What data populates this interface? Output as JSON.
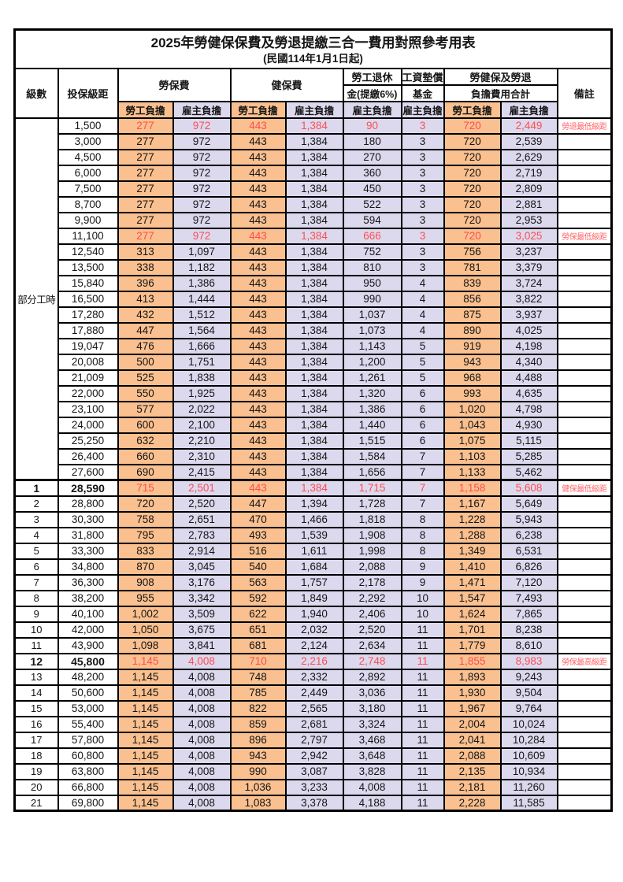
{
  "title": "2025年勞健保保費及勞退提繳三合一費用對照參考用表",
  "subtitle": "(民國114年1月1日起)",
  "header": {
    "level": "級數",
    "bracket": "投保級距",
    "labor": "勞保費",
    "health": "健保費",
    "pension_line1": "勞工退休",
    "pension_line2": "金(提繳6%)",
    "fund_line1": "工資墊償",
    "fund_line2": "基金",
    "total_line1": "勞健保及勞退",
    "total_line2": "負擔費用合計",
    "employee": "勞工負擔",
    "employer": "雇主負擔",
    "note": "備註"
  },
  "part_time_label": "部分工時",
  "colors": {
    "employee_bg": "#FAC08F",
    "employer_bg": "#DCD9EE",
    "highlight_red": "#FF4D50",
    "note_red": "#FF6468"
  },
  "rows": [
    {
      "level": "",
      "bracket": "1,500",
      "labor_emp": "277",
      "labor_er": "972",
      "health_emp": "443",
      "health_er": "1,384",
      "pension_er": "90",
      "fund_er": "3",
      "total_emp": "720",
      "total_er": "2,449",
      "note": "勞退最低級距",
      "red": true,
      "bold": false
    },
    {
      "level": "",
      "bracket": "3,000",
      "labor_emp": "277",
      "labor_er": "972",
      "health_emp": "443",
      "health_er": "1,384",
      "pension_er": "180",
      "fund_er": "3",
      "total_emp": "720",
      "total_er": "2,539",
      "note": "",
      "red": false,
      "bold": false
    },
    {
      "level": "",
      "bracket": "4,500",
      "labor_emp": "277",
      "labor_er": "972",
      "health_emp": "443",
      "health_er": "1,384",
      "pension_er": "270",
      "fund_er": "3",
      "total_emp": "720",
      "total_er": "2,629",
      "note": "",
      "red": false,
      "bold": false
    },
    {
      "level": "",
      "bracket": "6,000",
      "labor_emp": "277",
      "labor_er": "972",
      "health_emp": "443",
      "health_er": "1,384",
      "pension_er": "360",
      "fund_er": "3",
      "total_emp": "720",
      "total_er": "2,719",
      "note": "",
      "red": false,
      "bold": false
    },
    {
      "level": "",
      "bracket": "7,500",
      "labor_emp": "277",
      "labor_er": "972",
      "health_emp": "443",
      "health_er": "1,384",
      "pension_er": "450",
      "fund_er": "3",
      "total_emp": "720",
      "total_er": "2,809",
      "note": "",
      "red": false,
      "bold": false
    },
    {
      "level": "",
      "bracket": "8,700",
      "labor_emp": "277",
      "labor_er": "972",
      "health_emp": "443",
      "health_er": "1,384",
      "pension_er": "522",
      "fund_er": "3",
      "total_emp": "720",
      "total_er": "2,881",
      "note": "",
      "red": false,
      "bold": false
    },
    {
      "level": "",
      "bracket": "9,900",
      "labor_emp": "277",
      "labor_er": "972",
      "health_emp": "443",
      "health_er": "1,384",
      "pension_er": "594",
      "fund_er": "3",
      "total_emp": "720",
      "total_er": "2,953",
      "note": "",
      "red": false,
      "bold": false
    },
    {
      "level": "",
      "bracket": "11,100",
      "labor_emp": "277",
      "labor_er": "972",
      "health_emp": "443",
      "health_er": "1,384",
      "pension_er": "666",
      "fund_er": "3",
      "total_emp": "720",
      "total_er": "3,025",
      "note": "勞保最低級距",
      "red": true,
      "bold": false
    },
    {
      "level": "",
      "bracket": "12,540",
      "labor_emp": "313",
      "labor_er": "1,097",
      "health_emp": "443",
      "health_er": "1,384",
      "pension_er": "752",
      "fund_er": "3",
      "total_emp": "756",
      "total_er": "3,237",
      "note": "",
      "red": false,
      "bold": false
    },
    {
      "level": "",
      "bracket": "13,500",
      "labor_emp": "338",
      "labor_er": "1,182",
      "health_emp": "443",
      "health_er": "1,384",
      "pension_er": "810",
      "fund_er": "3",
      "total_emp": "781",
      "total_er": "3,379",
      "note": "",
      "red": false,
      "bold": false
    },
    {
      "level": "",
      "bracket": "15,840",
      "labor_emp": "396",
      "labor_er": "1,386",
      "health_emp": "443",
      "health_er": "1,384",
      "pension_er": "950",
      "fund_er": "4",
      "total_emp": "839",
      "total_er": "3,724",
      "note": "",
      "red": false,
      "bold": false
    },
    {
      "level": "",
      "bracket": "16,500",
      "labor_emp": "413",
      "labor_er": "1,444",
      "health_emp": "443",
      "health_er": "1,384",
      "pension_er": "990",
      "fund_er": "4",
      "total_emp": "856",
      "total_er": "3,822",
      "note": "",
      "red": false,
      "bold": false
    },
    {
      "level": "",
      "bracket": "17,280",
      "labor_emp": "432",
      "labor_er": "1,512",
      "health_emp": "443",
      "health_er": "1,384",
      "pension_er": "1,037",
      "fund_er": "4",
      "total_emp": "875",
      "total_er": "3,937",
      "note": "",
      "red": false,
      "bold": false
    },
    {
      "level": "",
      "bracket": "17,880",
      "labor_emp": "447",
      "labor_er": "1,564",
      "health_emp": "443",
      "health_er": "1,384",
      "pension_er": "1,073",
      "fund_er": "4",
      "total_emp": "890",
      "total_er": "4,025",
      "note": "",
      "red": false,
      "bold": false
    },
    {
      "level": "",
      "bracket": "19,047",
      "labor_emp": "476",
      "labor_er": "1,666",
      "health_emp": "443",
      "health_er": "1,384",
      "pension_er": "1,143",
      "fund_er": "5",
      "total_emp": "919",
      "total_er": "4,198",
      "note": "",
      "red": false,
      "bold": false
    },
    {
      "level": "",
      "bracket": "20,008",
      "labor_emp": "500",
      "labor_er": "1,751",
      "health_emp": "443",
      "health_er": "1,384",
      "pension_er": "1,200",
      "fund_er": "5",
      "total_emp": "943",
      "total_er": "4,340",
      "note": "",
      "red": false,
      "bold": false
    },
    {
      "level": "",
      "bracket": "21,009",
      "labor_emp": "525",
      "labor_er": "1,838",
      "health_emp": "443",
      "health_er": "1,384",
      "pension_er": "1,261",
      "fund_er": "5",
      "total_emp": "968",
      "total_er": "4,488",
      "note": "",
      "red": false,
      "bold": false
    },
    {
      "level": "",
      "bracket": "22,000",
      "labor_emp": "550",
      "labor_er": "1,925",
      "health_emp": "443",
      "health_er": "1,384",
      "pension_er": "1,320",
      "fund_er": "6",
      "total_emp": "993",
      "total_er": "4,635",
      "note": "",
      "red": false,
      "bold": false
    },
    {
      "level": "",
      "bracket": "23,100",
      "labor_emp": "577",
      "labor_er": "2,022",
      "health_emp": "443",
      "health_er": "1,384",
      "pension_er": "1,386",
      "fund_er": "6",
      "total_emp": "1,020",
      "total_er": "4,798",
      "note": "",
      "red": false,
      "bold": false
    },
    {
      "level": "",
      "bracket": "24,000",
      "labor_emp": "600",
      "labor_er": "2,100",
      "health_emp": "443",
      "health_er": "1,384",
      "pension_er": "1,440",
      "fund_er": "6",
      "total_emp": "1,043",
      "total_er": "4,930",
      "note": "",
      "red": false,
      "bold": false
    },
    {
      "level": "",
      "bracket": "25,250",
      "labor_emp": "632",
      "labor_er": "2,210",
      "health_emp": "443",
      "health_er": "1,384",
      "pension_er": "1,515",
      "fund_er": "6",
      "total_emp": "1,075",
      "total_er": "5,115",
      "note": "",
      "red": false,
      "bold": false
    },
    {
      "level": "",
      "bracket": "26,400",
      "labor_emp": "660",
      "labor_er": "2,310",
      "health_emp": "443",
      "health_er": "1,384",
      "pension_er": "1,584",
      "fund_er": "7",
      "total_emp": "1,103",
      "total_er": "5,285",
      "note": "",
      "red": false,
      "bold": false
    },
    {
      "level": "",
      "bracket": "27,600",
      "labor_emp": "690",
      "labor_er": "2,415",
      "health_emp": "443",
      "health_er": "1,384",
      "pension_er": "1,656",
      "fund_er": "7",
      "total_emp": "1,133",
      "total_er": "5,462",
      "note": "",
      "red": false,
      "bold": false
    },
    {
      "level": "1",
      "bracket": "28,590",
      "labor_emp": "715",
      "labor_er": "2,501",
      "health_emp": "443",
      "health_er": "1,384",
      "pension_er": "1,715",
      "fund_er": "7",
      "total_emp": "1,158",
      "total_er": "5,608",
      "note": "健保最低級距",
      "red": true,
      "bold": true
    },
    {
      "level": "2",
      "bracket": "28,800",
      "labor_emp": "720",
      "labor_er": "2,520",
      "health_emp": "447",
      "health_er": "1,394",
      "pension_er": "1,728",
      "fund_er": "7",
      "total_emp": "1,167",
      "total_er": "5,649",
      "note": "",
      "red": false,
      "bold": false
    },
    {
      "level": "3",
      "bracket": "30,300",
      "labor_emp": "758",
      "labor_er": "2,651",
      "health_emp": "470",
      "health_er": "1,466",
      "pension_er": "1,818",
      "fund_er": "8",
      "total_emp": "1,228",
      "total_er": "5,943",
      "note": "",
      "red": false,
      "bold": false
    },
    {
      "level": "4",
      "bracket": "31,800",
      "labor_emp": "795",
      "labor_er": "2,783",
      "health_emp": "493",
      "health_er": "1,539",
      "pension_er": "1,908",
      "fund_er": "8",
      "total_emp": "1,288",
      "total_er": "6,238",
      "note": "",
      "red": false,
      "bold": false
    },
    {
      "level": "5",
      "bracket": "33,300",
      "labor_emp": "833",
      "labor_er": "2,914",
      "health_emp": "516",
      "health_er": "1,611",
      "pension_er": "1,998",
      "fund_er": "8",
      "total_emp": "1,349",
      "total_er": "6,531",
      "note": "",
      "red": false,
      "bold": false
    },
    {
      "level": "6",
      "bracket": "34,800",
      "labor_emp": "870",
      "labor_er": "3,045",
      "health_emp": "540",
      "health_er": "1,684",
      "pension_er": "2,088",
      "fund_er": "9",
      "total_emp": "1,410",
      "total_er": "6,826",
      "note": "",
      "red": false,
      "bold": false
    },
    {
      "level": "7",
      "bracket": "36,300",
      "labor_emp": "908",
      "labor_er": "3,176",
      "health_emp": "563",
      "health_er": "1,757",
      "pension_er": "2,178",
      "fund_er": "9",
      "total_emp": "1,471",
      "total_er": "7,120",
      "note": "",
      "red": false,
      "bold": false
    },
    {
      "level": "8",
      "bracket": "38,200",
      "labor_emp": "955",
      "labor_er": "3,342",
      "health_emp": "592",
      "health_er": "1,849",
      "pension_er": "2,292",
      "fund_er": "10",
      "total_emp": "1,547",
      "total_er": "7,493",
      "note": "",
      "red": false,
      "bold": false
    },
    {
      "level": "9",
      "bracket": "40,100",
      "labor_emp": "1,002",
      "labor_er": "3,509",
      "health_emp": "622",
      "health_er": "1,940",
      "pension_er": "2,406",
      "fund_er": "10",
      "total_emp": "1,624",
      "total_er": "7,865",
      "note": "",
      "red": false,
      "bold": false
    },
    {
      "level": "10",
      "bracket": "42,000",
      "labor_emp": "1,050",
      "labor_er": "3,675",
      "health_emp": "651",
      "health_er": "2,032",
      "pension_er": "2,520",
      "fund_er": "11",
      "total_emp": "1,701",
      "total_er": "8,238",
      "note": "",
      "red": false,
      "bold": false
    },
    {
      "level": "11",
      "bracket": "43,900",
      "labor_emp": "1,098",
      "labor_er": "3,841",
      "health_emp": "681",
      "health_er": "2,124",
      "pension_er": "2,634",
      "fund_er": "11",
      "total_emp": "1,779",
      "total_er": "8,610",
      "note": "",
      "red": false,
      "bold": false
    },
    {
      "level": "12",
      "bracket": "45,800",
      "labor_emp": "1,145",
      "labor_er": "4,008",
      "health_emp": "710",
      "health_er": "2,216",
      "pension_er": "2,748",
      "fund_er": "11",
      "total_emp": "1,855",
      "total_er": "8,983",
      "note": "勞保最高級距",
      "red": true,
      "bold": true
    },
    {
      "level": "13",
      "bracket": "48,200",
      "labor_emp": "1,145",
      "labor_er": "4,008",
      "health_emp": "748",
      "health_er": "2,332",
      "pension_er": "2,892",
      "fund_er": "11",
      "total_emp": "1,893",
      "total_er": "9,243",
      "note": "",
      "red": false,
      "bold": false
    },
    {
      "level": "14",
      "bracket": "50,600",
      "labor_emp": "1,145",
      "labor_er": "4,008",
      "health_emp": "785",
      "health_er": "2,449",
      "pension_er": "3,036",
      "fund_er": "11",
      "total_emp": "1,930",
      "total_er": "9,504",
      "note": "",
      "red": false,
      "bold": false
    },
    {
      "level": "15",
      "bracket": "53,000",
      "labor_emp": "1,145",
      "labor_er": "4,008",
      "health_emp": "822",
      "health_er": "2,565",
      "pension_er": "3,180",
      "fund_er": "11",
      "total_emp": "1,967",
      "total_er": "9,764",
      "note": "",
      "red": false,
      "bold": false
    },
    {
      "level": "16",
      "bracket": "55,400",
      "labor_emp": "1,145",
      "labor_er": "4,008",
      "health_emp": "859",
      "health_er": "2,681",
      "pension_er": "3,324",
      "fund_er": "11",
      "total_emp": "2,004",
      "total_er": "10,024",
      "note": "",
      "red": false,
      "bold": false
    },
    {
      "level": "17",
      "bracket": "57,800",
      "labor_emp": "1,145",
      "labor_er": "4,008",
      "health_emp": "896",
      "health_er": "2,797",
      "pension_er": "3,468",
      "fund_er": "11",
      "total_emp": "2,041",
      "total_er": "10,284",
      "note": "",
      "red": false,
      "bold": false
    },
    {
      "level": "18",
      "bracket": "60,800",
      "labor_emp": "1,145",
      "labor_er": "4,008",
      "health_emp": "943",
      "health_er": "2,942",
      "pension_er": "3,648",
      "fund_er": "11",
      "total_emp": "2,088",
      "total_er": "10,609",
      "note": "",
      "red": false,
      "bold": false
    },
    {
      "level": "19",
      "bracket": "63,800",
      "labor_emp": "1,145",
      "labor_er": "4,008",
      "health_emp": "990",
      "health_er": "3,087",
      "pension_er": "3,828",
      "fund_er": "11",
      "total_emp": "2,135",
      "total_er": "10,934",
      "note": "",
      "red": false,
      "bold": false
    },
    {
      "level": "20",
      "bracket": "66,800",
      "labor_emp": "1,145",
      "labor_er": "4,008",
      "health_emp": "1,036",
      "health_er": "3,233",
      "pension_er": "4,008",
      "fund_er": "11",
      "total_emp": "2,181",
      "total_er": "11,260",
      "note": "",
      "red": false,
      "bold": false
    },
    {
      "level": "21",
      "bracket": "69,800",
      "labor_emp": "1,145",
      "labor_er": "4,008",
      "health_emp": "1,083",
      "health_er": "3,378",
      "pension_er": "4,188",
      "fund_er": "11",
      "total_emp": "2,228",
      "total_er": "11,585",
      "note": "",
      "red": false,
      "bold": false
    }
  ]
}
